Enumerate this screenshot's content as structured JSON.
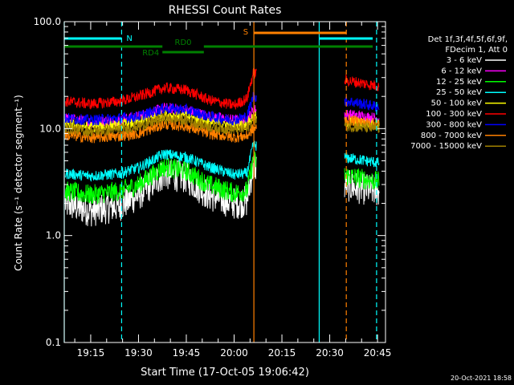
{
  "chart_data": {
    "type": "line",
    "title": "RHESSI Count Rates",
    "xlabel": "Start Time (17-Oct-05 19:06:42)",
    "ylabel": "Count Rate (s⁻¹ detector segment⁻¹)",
    "y_scale": "log",
    "ylim": [
      0.1,
      100.0
    ],
    "xlim": [
      "19:06:42",
      "20:47:30"
    ],
    "x_ticks": [
      "19:15",
      "19:30",
      "19:45",
      "20:00",
      "20:15",
      "20:30",
      "20:45"
    ],
    "y_ticks": [
      "0.1",
      "1.0",
      "10.0",
      "100.0"
    ],
    "grid": false,
    "legend_position": "right",
    "legend_header": [
      "Det 1f,3f,4f,5f,6f,9f,",
      "FDecim 1, Att 0"
    ],
    "series": [
      {
        "name": "3 - 6 keV",
        "color": "#ffffff",
        "x": [
          "19:07",
          "19:15",
          "19:24",
          "19:30",
          "19:38",
          "19:45",
          "19:52",
          "20:00",
          "20:04",
          "20:06",
          "20:36",
          "20:45"
        ],
        "values": [
          2.0,
          1.7,
          1.9,
          2.4,
          3.8,
          3.5,
          2.4,
          2.0,
          2.1,
          4.5,
          2.9,
          2.6
        ]
      },
      {
        "name": "6 - 12 keV",
        "color": "#ff00ff",
        "x": [
          "19:07",
          "19:15",
          "19:24",
          "19:30",
          "19:38",
          "19:45",
          "19:52",
          "20:00",
          "20:04",
          "20:06",
          "20:36",
          "20:45"
        ],
        "values": [
          12.5,
          11.5,
          12.0,
          13.0,
          15.5,
          15.0,
          13.0,
          12.0,
          12.0,
          15.0,
          13.5,
          12.5
        ]
      },
      {
        "name": "12 - 25 keV",
        "color": "#00ff00",
        "x": [
          "19:07",
          "19:15",
          "19:24",
          "19:30",
          "19:38",
          "19:45",
          "19:52",
          "20:00",
          "20:04",
          "20:06",
          "20:36",
          "20:45"
        ],
        "values": [
          2.6,
          2.4,
          2.6,
          3.0,
          4.4,
          4.0,
          3.0,
          2.5,
          2.6,
          5.0,
          3.6,
          3.2
        ]
      },
      {
        "name": "25 - 50 keV",
        "color": "#00ffff",
        "x": [
          "19:07",
          "19:15",
          "19:24",
          "19:30",
          "19:38",
          "19:45",
          "19:52",
          "20:00",
          "20:04",
          "20:06",
          "20:36",
          "20:45"
        ],
        "values": [
          3.8,
          3.6,
          3.8,
          4.3,
          5.8,
          5.4,
          4.4,
          3.7,
          3.8,
          7.0,
          5.3,
          4.8
        ]
      },
      {
        "name": "50 - 100 keV",
        "color": "#ffff00",
        "x": [
          "19:07",
          "19:15",
          "19:24",
          "19:30",
          "19:38",
          "19:45",
          "19:52",
          "20:00",
          "20:04",
          "20:06",
          "20:36",
          "20:45"
        ],
        "values": [
          11.0,
          10.3,
          10.8,
          11.5,
          13.5,
          13.0,
          11.5,
          10.8,
          10.8,
          13.0,
          11.5,
          11.0
        ]
      },
      {
        "name": "100 - 300 keV",
        "color": "#ff0000",
        "x": [
          "19:07",
          "19:15",
          "19:24",
          "19:30",
          "19:38",
          "19:45",
          "19:52",
          "20:00",
          "20:04",
          "20:06",
          "20:36",
          "20:45"
        ],
        "values": [
          18.0,
          17.0,
          18.0,
          20.0,
          24.0,
          23.0,
          18.5,
          16.5,
          19.0,
          33.0,
          28.0,
          25.0
        ]
      },
      {
        "name": "300 - 800 keV",
        "color": "#0000ff",
        "x": [
          "19:07",
          "19:15",
          "19:24",
          "19:30",
          "19:38",
          "19:45",
          "19:52",
          "20:00",
          "20:04",
          "20:06",
          "20:36",
          "20:45"
        ],
        "values": [
          12.5,
          12.0,
          12.5,
          13.0,
          15.5,
          15.0,
          13.0,
          12.0,
          13.0,
          20.0,
          18.0,
          16.0
        ]
      },
      {
        "name": "800 - 7000 keV",
        "color": "#ff8000",
        "x": [
          "19:07",
          "19:15",
          "19:24",
          "19:30",
          "19:38",
          "19:45",
          "19:52",
          "20:00",
          "20:04",
          "20:06",
          "20:36",
          "20:45"
        ],
        "values": [
          8.7,
          8.2,
          8.5,
          9.0,
          11.0,
          10.5,
          9.0,
          8.3,
          8.5,
          10.0,
          12.0,
          11.0
        ]
      },
      {
        "name": "7000 - 15000 keV",
        "color": "#a08000",
        "x": [
          "19:07",
          "19:15",
          "19:24",
          "19:30",
          "19:38",
          "19:45",
          "19:52",
          "20:00",
          "20:04",
          "20:06",
          "20:36",
          "20:45"
        ],
        "values": [
          10.0,
          9.5,
          9.8,
          10.5,
          12.5,
          12.0,
          10.5,
          9.8,
          10.0,
          12.0,
          10.5,
          10.0
        ]
      }
    ],
    "vertical_markers": [
      {
        "time": "19:06:42",
        "color": "#00ffff",
        "style": "solid"
      },
      {
        "time": "19:24:42",
        "color": "#00ffff",
        "style": "dashed"
      },
      {
        "time": "20:06:12",
        "color": "#ff8000",
        "style": "solid"
      },
      {
        "time": "20:26:42",
        "color": "#00ffff",
        "style": "solid"
      },
      {
        "time": "20:35:12",
        "color": "#ff8000",
        "style": "dashed"
      },
      {
        "time": "20:44:42",
        "color": "#00ffff",
        "style": "dashed"
      }
    ],
    "flag_bars": [
      {
        "label": "N",
        "color": "#00ffff",
        "start": "19:06:42",
        "end": "19:24:42",
        "level": "top"
      },
      {
        "label": "N",
        "color": "#00ffff",
        "start": "20:26:42",
        "end": "20:44:42",
        "level": "top"
      },
      {
        "label": "S",
        "color": "#ff8000",
        "start": "20:06:12",
        "end": "20:35:12",
        "level": "upper"
      },
      {
        "label": "RD0",
        "color": "#008000",
        "start": "19:06:42",
        "end": "20:47:30",
        "level": "middle"
      },
      {
        "label": "RD4",
        "color": "#008000",
        "start": "19:37:30",
        "end": "19:50:30",
        "level": "lower"
      }
    ],
    "bar_labels": [
      "N",
      "S",
      "RD0",
      "RD4"
    ]
  },
  "footer": {
    "date_stamp": "20-Oct-2021 18:58"
  }
}
